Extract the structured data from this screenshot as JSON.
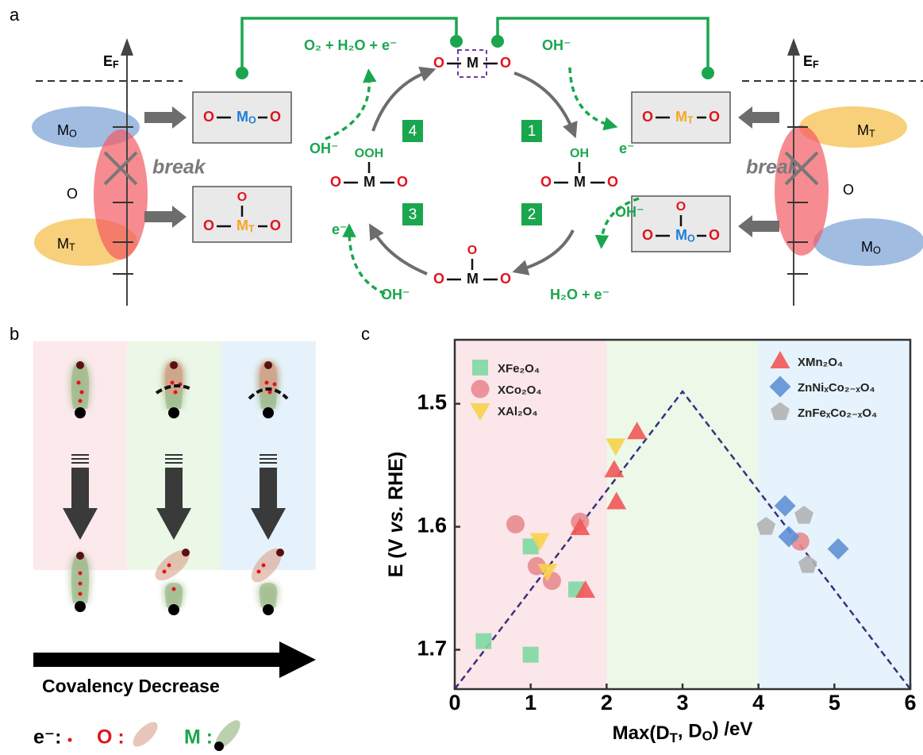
{
  "panel_labels": [
    "a",
    "b",
    "c"
  ],
  "panel_a": {
    "fermi": {
      "main": "E",
      "sub": "F"
    },
    "m_o": {
      "main": "M",
      "sub": "O"
    },
    "m_t": {
      "main": "M",
      "sub": "T"
    },
    "o_band": "O",
    "break_label": "break",
    "atom_o": "O",
    "atom_m": "M",
    "group_oh": "OH",
    "group_ooh": "OOH",
    "release": "O₂ + H₂O + e⁻",
    "hydroxide": "OH⁻",
    "electron": "e⁻",
    "water_electron": "H₂O + e⁻",
    "steps": [
      "1",
      "2",
      "3",
      "4"
    ]
  },
  "panel_b": {
    "arrow_label": "Covalency Decrease",
    "legend": {
      "electron": "e⁻:",
      "oxygen": "O :",
      "metal": "M :"
    }
  },
  "chart_data": {
    "type": "scatter",
    "xlabel": [
      "Max(D",
      "T",
      ", D",
      "O",
      ") /eV"
    ],
    "ylabel": [
      "E (V ",
      "vs.",
      " RHE)"
    ],
    "xlim": [
      0,
      6
    ],
    "ylim": [
      1.448,
      1.732
    ],
    "y_inverted": true,
    "xticks": [
      0,
      1,
      2,
      3,
      4,
      5,
      6
    ],
    "yticks": [
      1.5,
      1.6,
      1.7
    ],
    "regions": [
      {
        "x": [
          0,
          2
        ],
        "color": "#fbe6e9"
      },
      {
        "x": [
          2,
          4
        ],
        "color": "#ecf8e8"
      },
      {
        "x": [
          4,
          6
        ],
        "color": "#e6f3fc"
      }
    ],
    "trend_line": {
      "x": [
        0,
        3,
        6
      ],
      "y": [
        1.732,
        1.49,
        1.732
      ],
      "color": "#3b2f7e"
    },
    "series": [
      {
        "name": "XFe₂O₄",
        "marker": "square",
        "color": "#7fd8a3",
        "x": [
          0.38,
          1.0,
          1.0,
          1.6
        ],
        "values": [
          1.693,
          1.616,
          1.704,
          1.651
        ]
      },
      {
        "name": "XCo₂O₄",
        "marker": "circle",
        "color": "#e88b91",
        "x": [
          0.8,
          1.08,
          1.28,
          1.65,
          4.55
        ],
        "values": [
          1.598,
          1.632,
          1.644,
          1.596,
          1.612
        ]
      },
      {
        "name": "XAl₂O₄",
        "marker": "triangle-down",
        "color": "#f7d24a",
        "x": [
          1.12,
          1.22,
          2.12
        ],
        "values": [
          1.611,
          1.636,
          1.534
        ]
      },
      {
        "name": "XMn₂O₄",
        "marker": "triangle-up",
        "color": "#f25757",
        "x": [
          1.65,
          1.72,
          2.1,
          2.13,
          2.4
        ],
        "values": [
          1.601,
          1.652,
          1.554,
          1.58,
          1.523
        ]
      },
      {
        "name": "ZnNiₓCo₂₋ₓO₄",
        "marker": "diamond",
        "color": "#5f90d4",
        "x": [
          4.35,
          4.4,
          5.05
        ],
        "values": [
          1.583,
          1.608,
          1.618
        ]
      },
      {
        "name": "ZnFeₓCo₂₋ₓO₄",
        "marker": "pentagon",
        "color": "#b3b3b3",
        "x": [
          4.1,
          4.6,
          4.65
        ],
        "values": [
          1.6,
          1.591,
          1.631
        ]
      }
    ]
  }
}
